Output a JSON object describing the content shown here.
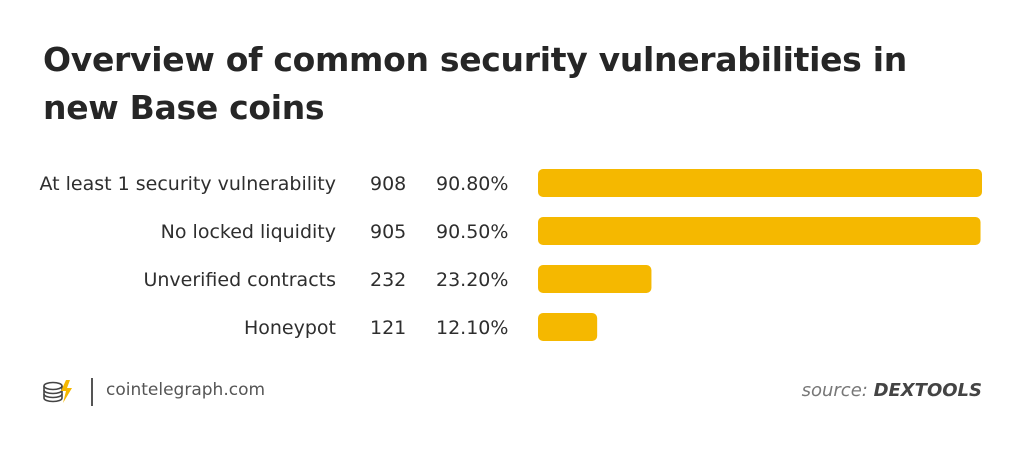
{
  "title": "Overview of common security vulnerabilities in new Base coins",
  "footer": {
    "site": "cointelegraph.com",
    "source_prefix": "source:",
    "source_name": "DEXTOOLS",
    "logo_icon": "cointelegraph-logo-icon"
  },
  "colors": {
    "bar": "#F5B800",
    "text": "#2e2e2e"
  },
  "chart_data": {
    "type": "bar",
    "orientation": "horizontal",
    "title": "Overview of common security vulnerabilities in new Base coins",
    "categories": [
      "At least 1 security vulnerability",
      "No locked liquidity",
      "Unverified contracts",
      "Honeypot"
    ],
    "values": [
      908,
      905,
      232,
      121
    ],
    "percent_labels": [
      "90.80%",
      "90.50%",
      "23.20%",
      "12.10%"
    ],
    "percent_values": [
      90.8,
      90.5,
      23.2,
      12.1
    ],
    "xlim": [
      0,
      908
    ],
    "grid": false,
    "legend": "none"
  }
}
